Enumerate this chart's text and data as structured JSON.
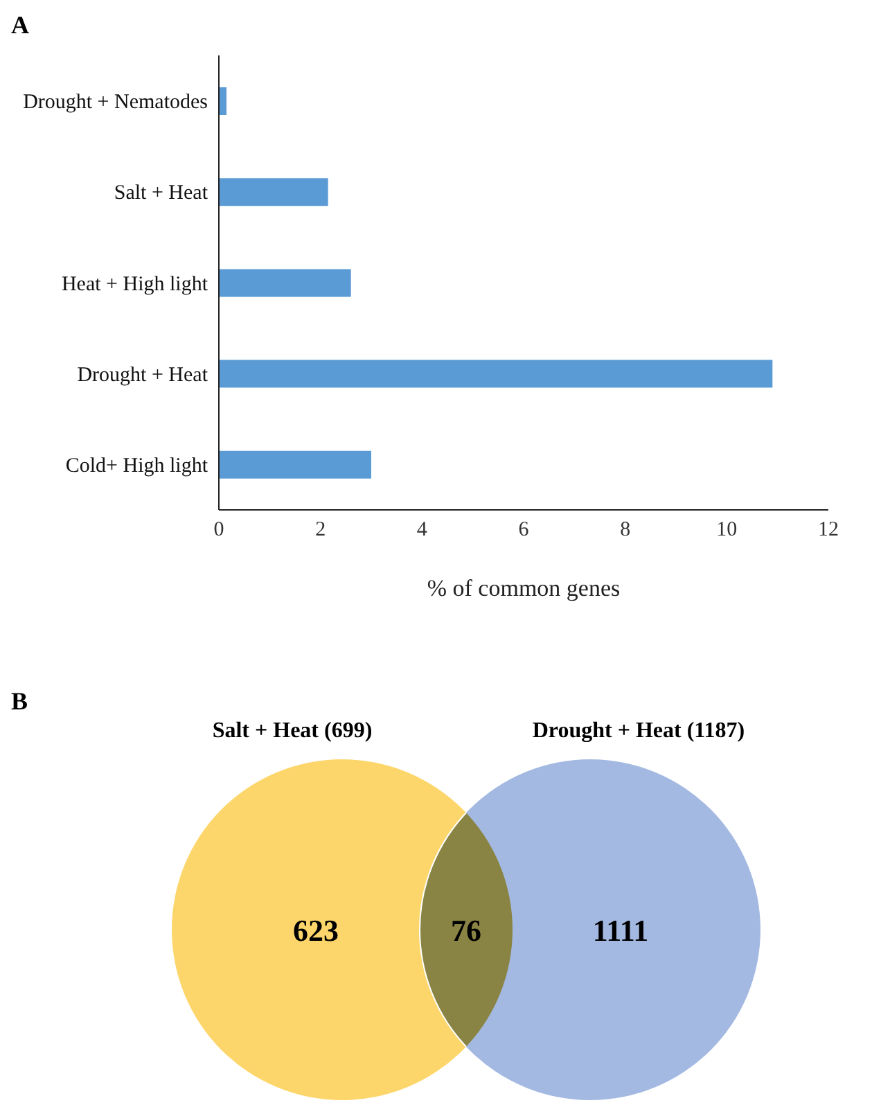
{
  "chart_data": [
    {
      "type": "bar",
      "title": "A",
      "orientation": "horizontal",
      "categories": [
        "Drought + Nematodes",
        "Salt + Heat",
        "Heat + High light",
        "Drought + Heat",
        "Cold+ High light"
      ],
      "values": [
        0.15,
        2.15,
        2.6,
        10.9,
        3.0
      ],
      "color": "#5b9bd5",
      "xlim": [
        0,
        12
      ],
      "xticks": [
        0,
        2,
        4,
        6,
        8,
        10,
        12
      ],
      "xlabel": "% of common genes",
      "grid": false,
      "legend": false
    },
    {
      "type": "other",
      "title": "B",
      "categories": [
        null,
        null,
        null
      ],
      "values": [
        623,
        76,
        1111
      ],
      "colors": [
        "#fdd66b",
        "#8a8444",
        "#a3b9e2"
      ],
      "data_labels": true,
      "annotations": [
        "Salt + Heat (699)",
        "Drought + Heat (1187)"
      ]
    }
  ]
}
